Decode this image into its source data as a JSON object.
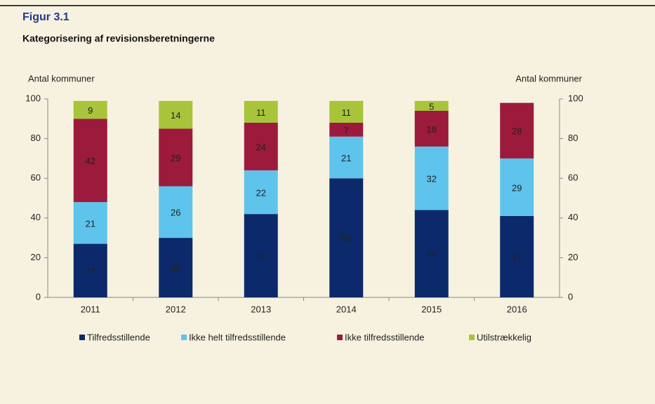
{
  "chart_data": {
    "type": "stacked_bar",
    "title": "Figur 3.1",
    "subtitle": "Kategorisering af revisionsberetningerne",
    "ylabel": "Antal kommuner",
    "y2label": "Antal kommuner",
    "categories": [
      "2011",
      "2012",
      "2013",
      "2014",
      "2015",
      "2016"
    ],
    "series": [
      {
        "name": "Tilfredsstillende",
        "color": "#0c2a6b",
        "values": [
          27,
          30,
          42,
          60,
          44,
          41
        ]
      },
      {
        "name": "Ikke helt tilfredsstillende",
        "color": "#5ec4ec",
        "values": [
          21,
          26,
          22,
          21,
          32,
          29
        ]
      },
      {
        "name": "Ikke tilfredsstillende",
        "color": "#9c1a3c",
        "values": [
          42,
          29,
          24,
          7,
          18,
          28
        ]
      },
      {
        "name": "Utilstrækkelig",
        "color": "#a8c43a",
        "values": [
          9,
          14,
          11,
          11,
          5,
          null
        ]
      }
    ],
    "ylim": [
      0,
      100
    ],
    "yticks": [
      0,
      20,
      40,
      60,
      80,
      100
    ],
    "y2lim": [
      0,
      100
    ],
    "y2ticks": [
      0,
      20,
      40,
      60,
      80,
      100
    ],
    "legend": "bottom"
  }
}
